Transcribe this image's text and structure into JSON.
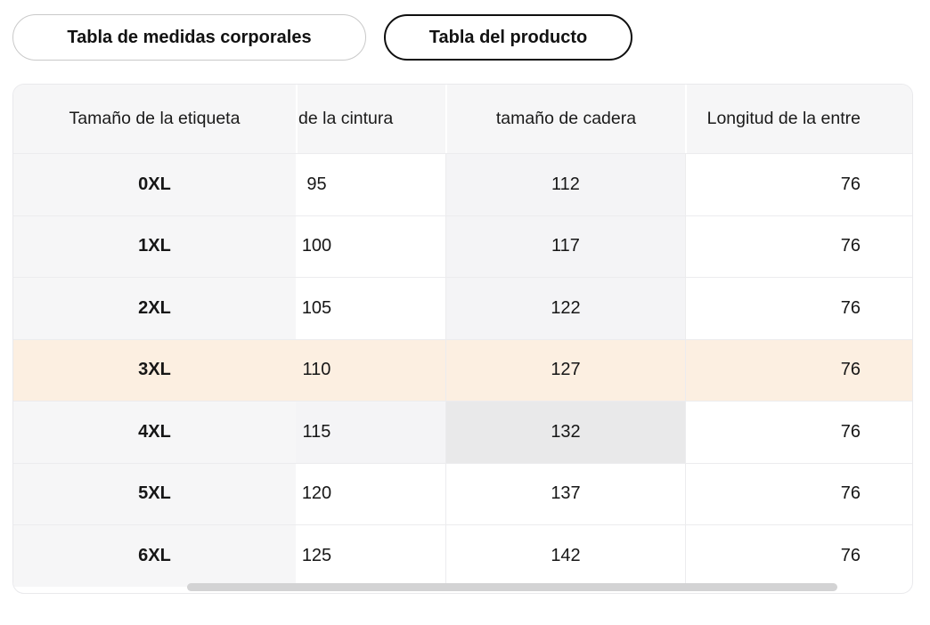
{
  "tabs": [
    {
      "label": "Tabla de medidas corporales",
      "selected": false
    },
    {
      "label": "Tabla del producto",
      "selected": true
    }
  ],
  "table": {
    "headers": [
      "Tamaño de la etiqueta",
      "de la cintura",
      "tamaño de cadera",
      "Longitud de la entre"
    ],
    "rows": [
      {
        "label": "0XL",
        "values": [
          "95",
          "112",
          "76"
        ]
      },
      {
        "label": "1XL",
        "values": [
          "100",
          "117",
          "76"
        ]
      },
      {
        "label": "2XL",
        "values": [
          "105",
          "122",
          "76"
        ]
      },
      {
        "label": "3XL",
        "values": [
          "110",
          "127",
          "76"
        ]
      },
      {
        "label": "4XL",
        "values": [
          "115",
          "132",
          "76"
        ]
      },
      {
        "label": "5XL",
        "values": [
          "120",
          "137",
          "76"
        ]
      },
      {
        "label": "6XL",
        "values": [
          "125",
          "142",
          "76"
        ]
      }
    ],
    "highlighted_row": "3XL",
    "hovered_cell": {
      "row": "4XL",
      "column": "tamaño de cadera"
    }
  },
  "colors": {
    "row_highlight": "#fcefe1",
    "cell_hover": "#e9e9ea",
    "crosshair_highlight": "#f4f4f6",
    "header_bg": "#f6f6f7",
    "selected_tab_border": "#0f0f0f",
    "scrollbar_thumb": "#d3d3d4"
  }
}
